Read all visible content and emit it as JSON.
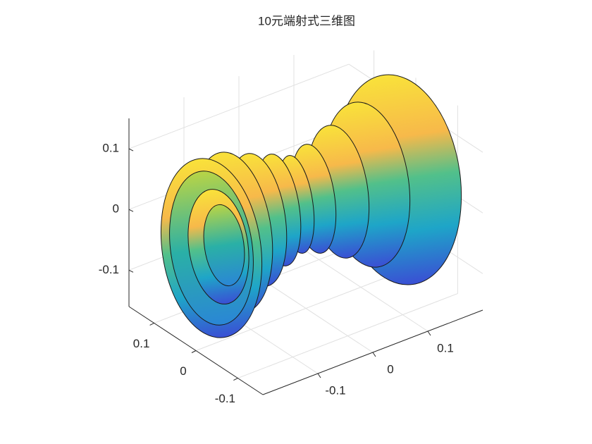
{
  "chart_data": {
    "type": "surface",
    "title": "10元端射式三维图",
    "xlim": [
      -0.2,
      0.2
    ],
    "xticks": [
      -0.1,
      0,
      0.1
    ],
    "ylim": [
      -0.16,
      0.16
    ],
    "yticks": [
      -0.1,
      0,
      0.1
    ],
    "zlim": [
      -0.16,
      0.15
    ],
    "zticks": [
      -0.1,
      0,
      0.1
    ],
    "grid": true,
    "colormap": "parula"
  }
}
